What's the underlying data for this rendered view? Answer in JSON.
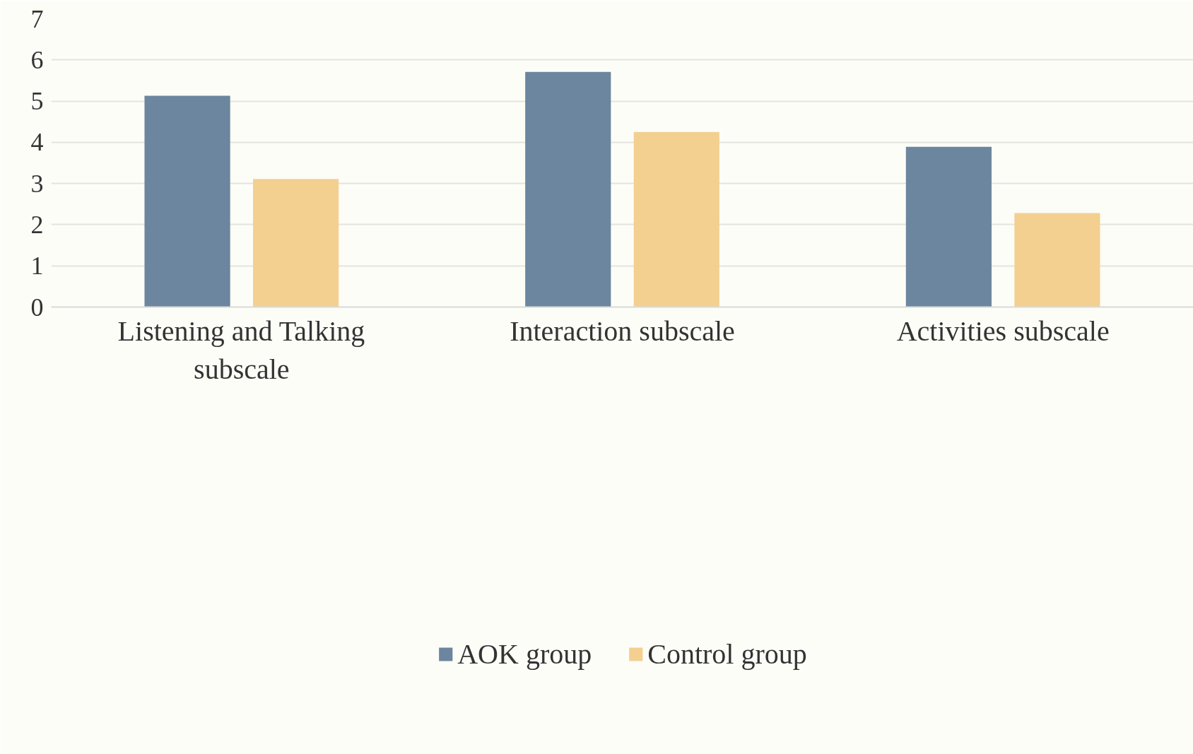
{
  "chart_data": {
    "type": "bar",
    "categories": [
      "Listening and Talking subscale",
      "Interaction subscale",
      "Activities subscale"
    ],
    "series": [
      {
        "name": "AOK group",
        "color": "#6b869e",
        "values": [
          5.13,
          5.71,
          3.89
        ]
      },
      {
        "name": "Control group",
        "color": "#f3d090",
        "values": [
          3.11,
          4.25,
          2.28
        ]
      }
    ],
    "ylim": [
      0,
      7
    ],
    "yticks": [
      0,
      1,
      2,
      3,
      4,
      5,
      6,
      7
    ],
    "grid": "y",
    "legend": "bottom"
  }
}
